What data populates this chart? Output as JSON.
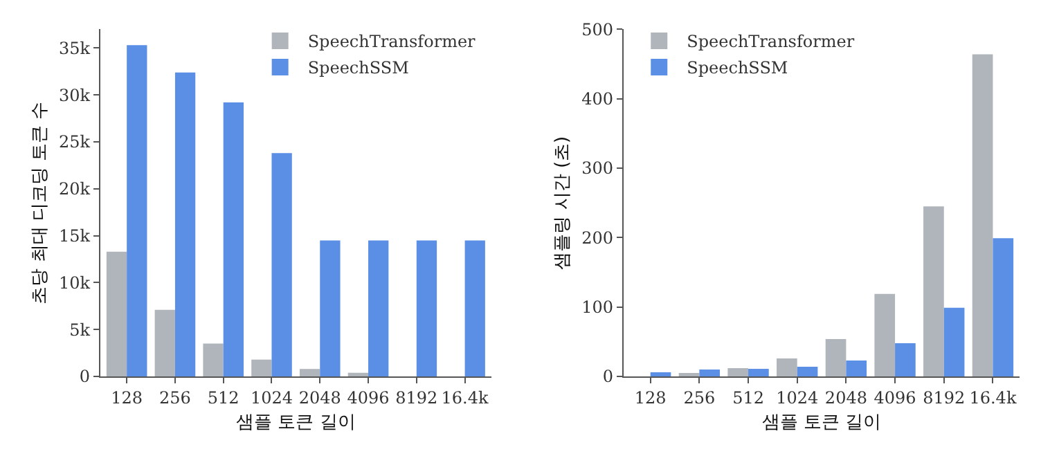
{
  "chart_data": [
    {
      "type": "bar",
      "xlabel": "샘플 토큰 길이",
      "ylabel": "초당 최대 디코딩 토큰 수",
      "categories": [
        "128",
        "256",
        "512",
        "1024",
        "2048",
        "4096",
        "8192",
        "16.4k"
      ],
      "series": [
        {
          "name": "SpeechTransformer",
          "color": "#b0b5bc",
          "values": [
            13300,
            7100,
            3500,
            1800,
            800,
            400,
            null,
            null
          ]
        },
        {
          "name": "SpeechSSM",
          "color": "#5b8fe6",
          "values": [
            35300,
            32400,
            29200,
            23800,
            14500,
            14500,
            14500,
            14500
          ]
        }
      ],
      "ylim": [
        0,
        37000
      ],
      "yticks": [
        {
          "value": 0,
          "label": "0"
        },
        {
          "value": 5000,
          "label": "5k"
        },
        {
          "value": 10000,
          "label": "10k"
        },
        {
          "value": 15000,
          "label": "15k"
        },
        {
          "value": 20000,
          "label": "20k"
        },
        {
          "value": 25000,
          "label": "25k"
        },
        {
          "value": 30000,
          "label": "30k"
        },
        {
          "value": 35000,
          "label": "35k"
        }
      ],
      "legend": "top right"
    },
    {
      "type": "bar",
      "xlabel": "샘플 토큰 길이",
      "ylabel": "샘플링 시간 (초)",
      "categories": [
        "128",
        "256",
        "512",
        "1024",
        "2048",
        "4096",
        "8192",
        "16.4k"
      ],
      "series": [
        {
          "name": "SpeechTransformer",
          "color": "#b0b5bc",
          "values": [
            null,
            5,
            12,
            26,
            54,
            119,
            245,
            464
          ]
        },
        {
          "name": "SpeechSSM",
          "color": "#5b8fe6",
          "values": [
            6,
            10,
            11,
            14,
            23,
            48,
            99,
            199
          ]
        }
      ],
      "ylim": [
        0,
        500
      ],
      "yticks": [
        0,
        100,
        200,
        300,
        400,
        500
      ],
      "legend": "top left"
    }
  ]
}
